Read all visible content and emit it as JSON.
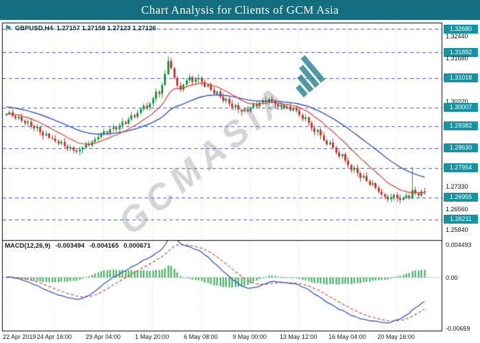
{
  "header": {
    "title": "Chart Analysis for Clients of GCM Asia"
  },
  "quote_bar": {
    "symbol": "GBPUSD,H4",
    "ohlc": "1.27157 1.27158 1.27123 1.27126"
  },
  "macd_bar": {
    "label": "MACD(12,26,9)",
    "macd_value": "-0.003494",
    "signal_value": "-0.004165",
    "histogram_value": "0.000671"
  },
  "watermark": {
    "text": "GCMASIA"
  },
  "price_axis": [
    {
      "text": "1.32680",
      "badge": true
    },
    {
      "text": "1.32440",
      "badge": false
    },
    {
      "text": "1.31892",
      "badge": true
    },
    {
      "text": "1.31680",
      "badge": false
    },
    {
      "text": "1.31018",
      "badge": true
    },
    {
      "text": "1.30220",
      "badge": false
    },
    {
      "text": "1.30007",
      "badge": true
    },
    {
      "text": "1.29382",
      "badge": true
    },
    {
      "text": "1.28630",
      "badge": true
    },
    {
      "text": "1.27954",
      "badge": true
    },
    {
      "text": "1.27330",
      "badge": false
    },
    {
      "text": "1.26955",
      "badge": true
    },
    {
      "text": "1.26560",
      "badge": false
    },
    {
      "text": "1.26211",
      "badge": true
    },
    {
      "text": "1.25840",
      "badge": false
    }
  ],
  "macd_axis": [
    {
      "text": "0.004493",
      "value": 0.004493
    },
    {
      "text": "0.00",
      "value": 0
    },
    {
      "text": "-0.00659",
      "value": -0.00659
    }
  ],
  "time_axis": [
    {
      "bar": 0,
      "label": "22 Apr 2019"
    },
    {
      "bar": 16,
      "label": "24 Apr 16:00"
    },
    {
      "bar": 32,
      "label": "29 Apr 04:00"
    },
    {
      "bar": 48,
      "label": "1 May 20:00"
    },
    {
      "bar": 64,
      "label": "6 May 08:00"
    },
    {
      "bar": 80,
      "label": "9 May 00:00"
    },
    {
      "bar": 96,
      "label": "13 May 12:00"
    },
    {
      "bar": 112,
      "label": "16 May 04:00"
    },
    {
      "bar": 128,
      "label": "20 May 16:00"
    }
  ],
  "chart_data": {
    "type": "candlestick",
    "title": "GBPUSD H4 candlestick chart with support/resistance levels and MACD(12,26,9)",
    "symbol": "GBPUSD",
    "timeframe": "H4",
    "ylim": [
      1.255,
      1.329
    ],
    "open_seed": 1.2975,
    "closes": [
      1.2979,
      1.2985,
      1.2972,
      1.2965,
      1.297,
      1.2956,
      1.2948,
      1.2953,
      1.2938,
      1.293,
      1.2935,
      1.2918,
      1.2906,
      1.2912,
      1.2898,
      1.2895,
      1.2887,
      1.2879,
      1.2884,
      1.287,
      1.2862,
      1.2866,
      1.2855,
      1.2851,
      1.2858,
      1.2865,
      1.2876,
      1.2872,
      1.2885,
      1.2893,
      1.2901,
      1.2912,
      1.292,
      1.2915,
      1.2928,
      1.2934,
      1.2927,
      1.294,
      1.2952,
      1.2946,
      1.2961,
      1.2975,
      1.2969,
      1.2983,
      1.2996,
      1.3008,
      1.3001,
      1.3015,
      1.3032,
      1.3055,
      1.3048,
      1.3078,
      1.3115,
      1.316,
      1.3135,
      1.3102,
      1.3076,
      1.3062,
      1.3079,
      1.3094,
      1.3105,
      1.3088,
      1.3097,
      1.3102,
      1.3088,
      1.3072,
      1.3079,
      1.3061,
      1.3048,
      1.3055,
      1.3038,
      1.3024,
      1.3031,
      1.3015,
      1.3002,
      1.3009,
      1.2994,
      1.2987,
      1.2995,
      1.2988,
      1.3001,
      1.3012,
      1.3005,
      1.3018,
      1.3026,
      1.3019,
      1.3031,
      1.3025,
      1.3012,
      1.3004,
      1.3011,
      1.2998,
      1.3005,
      1.2992,
      1.2999,
      1.299,
      1.2976,
      1.2962,
      1.2968,
      1.2949,
      1.2931,
      1.2918,
      1.2925,
      1.2906,
      1.2889,
      1.2876,
      1.2882,
      1.2865,
      1.2848,
      1.2835,
      1.2842,
      1.2821,
      1.2805,
      1.2789,
      1.2796,
      1.2778,
      1.2762,
      1.2768,
      1.2751,
      1.2738,
      1.2744,
      1.2728,
      1.2715,
      1.2706,
      1.2698,
      1.2689,
      1.2696,
      1.2704,
      1.2692,
      1.2687,
      1.2695,
      1.2702,
      1.2693,
      1.2721,
      1.2709,
      1.2702,
      1.2716,
      1.27126
    ],
    "wick_overrides": {
      "23": {
        "low": 1.2844
      },
      "53": {
        "high": 1.3176
      },
      "125": {
        "low": 1.2679
      },
      "133": {
        "high": 1.2799
      }
    },
    "support_resistance_levels": [
      1.3268,
      1.31892,
      1.31018,
      1.30007,
      1.29382,
      1.2863,
      1.27954,
      1.26955,
      1.26211
    ],
    "moving_averages": [
      {
        "type": "EMA",
        "period": 13,
        "color": "#dd3a30"
      },
      {
        "type": "EMA",
        "period": 34,
        "color": "#2b52c8",
        "seed": 1.3005
      }
    ],
    "macd": {
      "fast": 12,
      "slow": 26,
      "signal": 9,
      "ylim": [
        -0.00659,
        0.004493
      ]
    }
  },
  "colors": {
    "header_bg": "#156e7f",
    "badge_bg": "#1693a3",
    "up": "#169b46",
    "down": "#d0342c",
    "level_line": "#3a57c9",
    "grid": "#cfcfcf",
    "frame": "#000000",
    "macd_hist": "#2da84f",
    "macd_line": "#2b52c8",
    "macd_signal": "#dd3a30",
    "macd_zero": "#b4b4b4",
    "watermark": "rgba(125,125,125,0.32)",
    "watermark_accent": "rgba(20,120,134,0.75)"
  }
}
